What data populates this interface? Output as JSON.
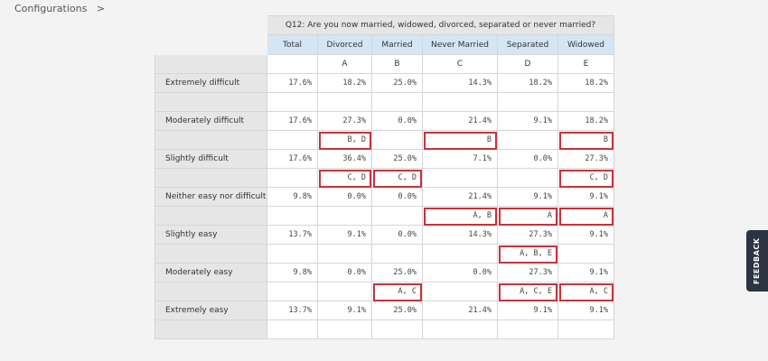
{
  "breadcrumb": {
    "label": "Configurations",
    "separator": ">"
  },
  "table": {
    "question": "Q12: Are you now married, widowed, divorced, separated or never married?",
    "columns": [
      "Total",
      "Divorced",
      "Married",
      "Never Married",
      "Separated",
      "Widowed"
    ],
    "letters": [
      "A",
      "B",
      "C",
      "D",
      "E"
    ],
    "rows": [
      {
        "label": "Extremely difficult",
        "values": [
          "17.6%",
          "18.2%",
          "25.0%",
          "14.3%",
          "18.2%",
          "18.2%"
        ],
        "sig": [
          null,
          null,
          null,
          null,
          null,
          null
        ]
      },
      {
        "label": "Moderately difficult",
        "values": [
          "17.6%",
          "27.3%",
          "0.0%",
          "21.4%",
          "9.1%",
          "18.2%"
        ],
        "sig": [
          null,
          "B, D",
          null,
          "B",
          null,
          "B"
        ]
      },
      {
        "label": "Slightly difficult",
        "values": [
          "17.6%",
          "36.4%",
          "25.0%",
          "7.1%",
          "0.0%",
          "27.3%"
        ],
        "sig": [
          null,
          "C, D",
          "C, D",
          null,
          null,
          "C, D"
        ]
      },
      {
        "label": "Neither easy nor difficult",
        "values": [
          "9.8%",
          "0.0%",
          "0.0%",
          "21.4%",
          "9.1%",
          "9.1%"
        ],
        "sig": [
          null,
          null,
          null,
          "A, B",
          "A",
          "A"
        ]
      },
      {
        "label": "Slightly easy",
        "values": [
          "13.7%",
          "9.1%",
          "0.0%",
          "14.3%",
          "27.3%",
          "9.1%"
        ],
        "sig": [
          null,
          null,
          null,
          null,
          "A, B, E",
          null
        ]
      },
      {
        "label": "Moderately easy",
        "values": [
          "9.8%",
          "0.0%",
          "25.0%",
          "0.0%",
          "27.3%",
          "9.1%"
        ],
        "sig": [
          null,
          null,
          "A, C",
          null,
          "A, C, E",
          "A, C"
        ]
      },
      {
        "label": "Extremely easy",
        "values": [
          "13.7%",
          "9.1%",
          "25.0%",
          "21.4%",
          "9.1%",
          "9.1%"
        ],
        "sig": [
          null,
          null,
          null,
          null,
          null,
          null
        ]
      }
    ]
  },
  "feedback": "FEEDBACK"
}
